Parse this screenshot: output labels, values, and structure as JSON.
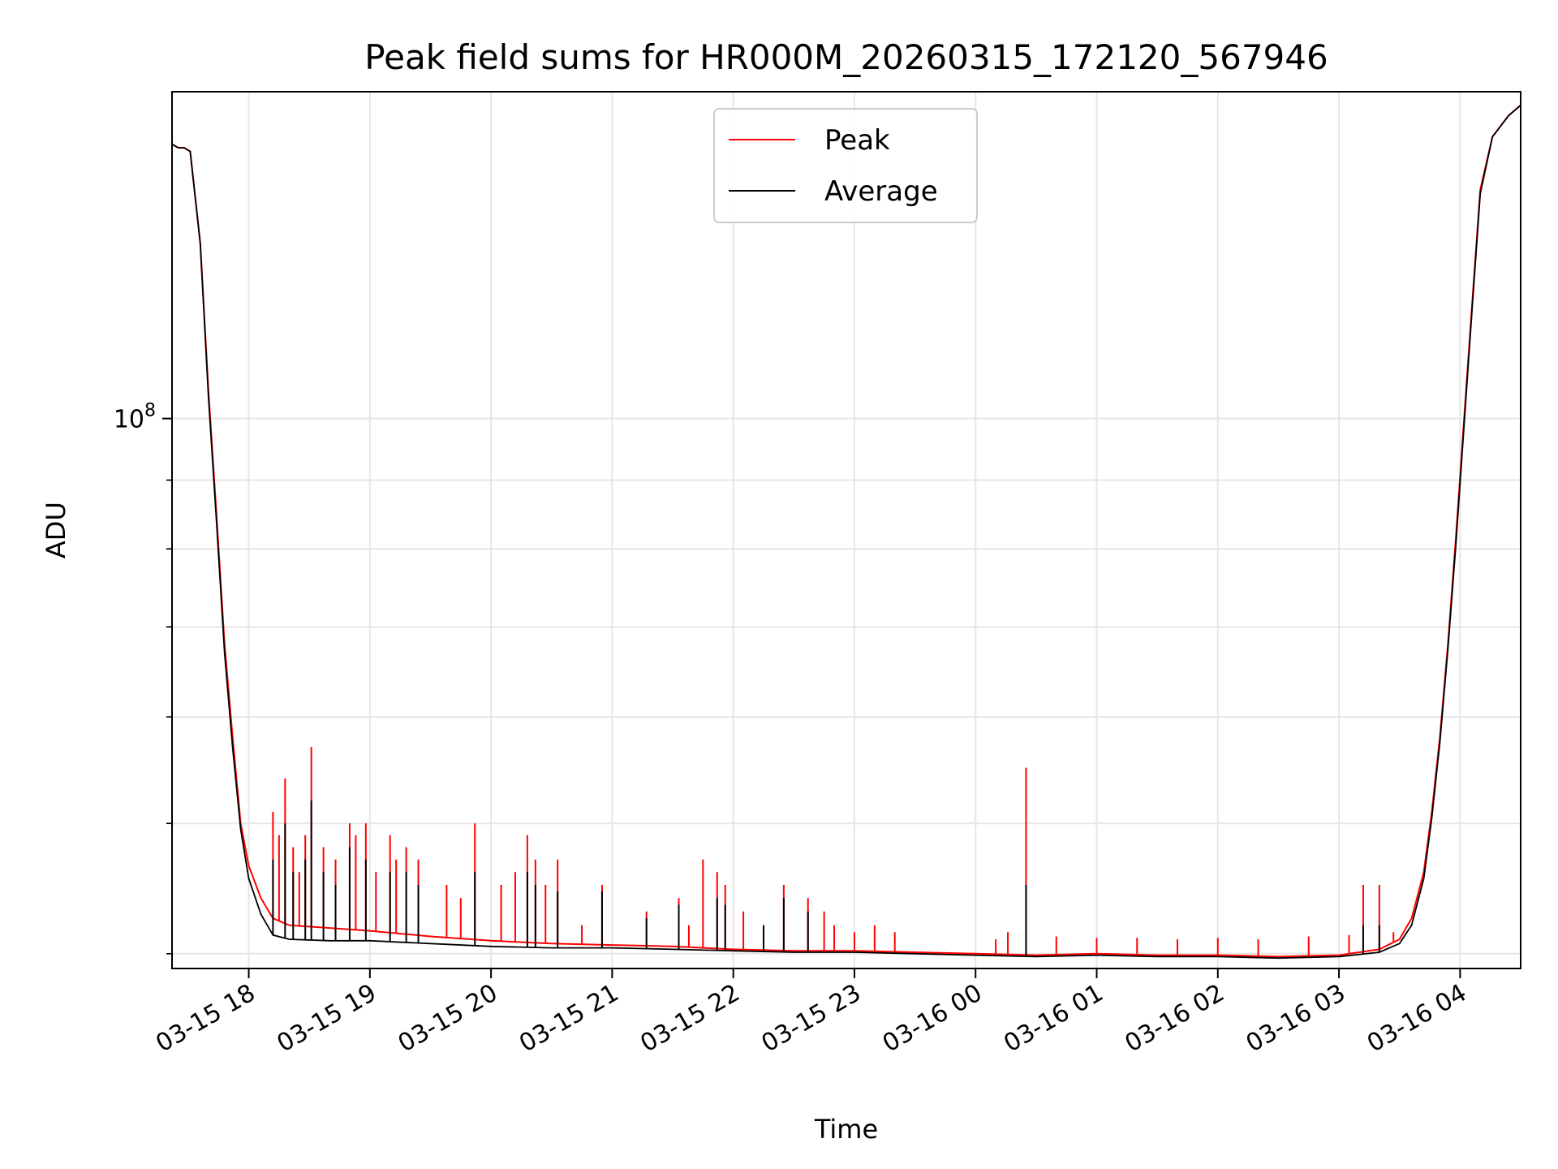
{
  "chart_data": {
    "type": "line",
    "title": "Peak field sums for HR000M_20260315_172120_567946",
    "xlabel": "Time",
    "ylabel": "ADU",
    "yscale": "log",
    "ylim": [
      39000000,
      175000000
    ],
    "xlim": [
      "2026-03-15 17:22",
      "2026-03-16 04:30"
    ],
    "grid": true,
    "legend_position": "top-center",
    "x_ticks": [
      "2026-03-15 18:00",
      "2026-03-15 19:00",
      "2026-03-15 20:00",
      "2026-03-15 21:00",
      "2026-03-15 22:00",
      "2026-03-15 23:00",
      "2026-03-16 00:00",
      "2026-03-16 01:00",
      "2026-03-16 02:00",
      "2026-03-16 03:00",
      "2026-03-16 04:00"
    ],
    "x_tick_labels": [
      "03-15 18",
      "03-15 19",
      "03-15 20",
      "03-15 21",
      "03-15 22",
      "03-15 23",
      "03-16 00",
      "03-16 01",
      "03-16 02",
      "03-16 03",
      "03-16 04"
    ],
    "y_major_ticks": [
      100000000
    ],
    "y_major_tick_labels": [
      {
        "base": "10",
        "exp": "8"
      }
    ],
    "y_minor_ticks": [
      40000000,
      50000000,
      60000000,
      70000000,
      80000000,
      90000000
    ],
    "series": [
      {
        "name": "Peak",
        "color": "#ff0000",
        "baseline": [
          [
            "2026-03-15 17:22",
            160000000
          ],
          [
            "2026-03-15 17:25",
            159000000
          ],
          [
            "2026-03-15 17:28",
            159000000
          ],
          [
            "2026-03-15 17:31",
            158000000
          ],
          [
            "2026-03-15 17:36",
            135000000
          ],
          [
            "2026-03-15 17:40",
            105000000
          ],
          [
            "2026-03-15 17:44",
            85000000
          ],
          [
            "2026-03-15 17:48",
            68000000
          ],
          [
            "2026-03-15 17:52",
            58000000
          ],
          [
            "2026-03-15 17:56",
            50000000
          ],
          [
            "2026-03-15 18:00",
            46500000
          ],
          [
            "2026-03-15 18:06",
            44000000
          ],
          [
            "2026-03-15 18:12",
            42500000
          ],
          [
            "2026-03-15 18:20",
            42000000
          ],
          [
            "2026-03-15 18:40",
            41800000
          ],
          [
            "2026-03-15 19:00",
            41600000
          ],
          [
            "2026-03-15 19:30",
            41200000
          ],
          [
            "2026-03-15 20:00",
            40900000
          ],
          [
            "2026-03-15 20:30",
            40700000
          ],
          [
            "2026-03-15 21:00",
            40600000
          ],
          [
            "2026-03-15 21:30",
            40500000
          ],
          [
            "2026-03-15 22:00",
            40300000
          ],
          [
            "2026-03-15 22:30",
            40200000
          ],
          [
            "2026-03-15 23:00",
            40200000
          ],
          [
            "2026-03-15 23:30",
            40100000
          ],
          [
            "2026-03-16 00:00",
            40000000
          ],
          [
            "2026-03-16 00:30",
            39900000
          ],
          [
            "2026-03-16 01:00",
            40000000
          ],
          [
            "2026-03-16 01:30",
            39900000
          ],
          [
            "2026-03-16 02:00",
            39900000
          ],
          [
            "2026-03-16 02:30",
            39800000
          ],
          [
            "2026-03-16 03:00",
            39900000
          ],
          [
            "2026-03-16 03:20",
            40300000
          ],
          [
            "2026-03-16 03:30",
            41000000
          ],
          [
            "2026-03-16 03:36",
            42500000
          ],
          [
            "2026-03-16 03:42",
            46000000
          ],
          [
            "2026-03-16 03:46",
            51000000
          ],
          [
            "2026-03-16 03:50",
            58000000
          ],
          [
            "2026-03-16 03:54",
            68000000
          ],
          [
            "2026-03-16 03:58",
            82000000
          ],
          [
            "2026-03-16 04:02",
            100000000
          ],
          [
            "2026-03-16 04:06",
            122000000
          ],
          [
            "2026-03-16 04:10",
            148000000
          ],
          [
            "2026-03-16 04:16",
            162000000
          ],
          [
            "2026-03-16 04:24",
            168000000
          ],
          [
            "2026-03-16 04:30",
            171000000
          ]
        ],
        "spikes": [
          [
            "2026-03-15 18:12",
            51000000
          ],
          [
            "2026-03-15 18:15",
            49000000
          ],
          [
            "2026-03-15 18:18",
            54000000
          ],
          [
            "2026-03-15 18:22",
            48000000
          ],
          [
            "2026-03-15 18:25",
            46000000
          ],
          [
            "2026-03-15 18:28",
            49000000
          ],
          [
            "2026-03-15 18:31",
            57000000
          ],
          [
            "2026-03-15 18:37",
            48000000
          ],
          [
            "2026-03-15 18:43",
            47000000
          ],
          [
            "2026-03-15 18:50",
            50000000
          ],
          [
            "2026-03-15 18:53",
            49000000
          ],
          [
            "2026-03-15 18:58",
            50000000
          ],
          [
            "2026-03-15 19:03",
            46000000
          ],
          [
            "2026-03-15 19:10",
            49000000
          ],
          [
            "2026-03-15 19:13",
            47000000
          ],
          [
            "2026-03-15 19:18",
            48000000
          ],
          [
            "2026-03-15 19:24",
            47000000
          ],
          [
            "2026-03-15 19:38",
            45000000
          ],
          [
            "2026-03-15 19:45",
            44000000
          ],
          [
            "2026-03-15 19:52",
            50000000
          ],
          [
            "2026-03-15 20:05",
            45000000
          ],
          [
            "2026-03-15 20:12",
            46000000
          ],
          [
            "2026-03-15 20:18",
            49000000
          ],
          [
            "2026-03-15 20:22",
            47000000
          ],
          [
            "2026-03-15 20:27",
            45000000
          ],
          [
            "2026-03-15 20:33",
            47000000
          ],
          [
            "2026-03-15 20:45",
            42000000
          ],
          [
            "2026-03-15 20:55",
            45000000
          ],
          [
            "2026-03-15 21:17",
            43000000
          ],
          [
            "2026-03-15 21:33",
            44000000
          ],
          [
            "2026-03-15 21:38",
            42000000
          ],
          [
            "2026-03-15 21:45",
            47000000
          ],
          [
            "2026-03-15 21:52",
            46000000
          ],
          [
            "2026-03-15 21:56",
            45000000
          ],
          [
            "2026-03-15 22:05",
            43000000
          ],
          [
            "2026-03-15 22:15",
            42000000
          ],
          [
            "2026-03-15 22:25",
            45000000
          ],
          [
            "2026-03-15 22:37",
            44000000
          ],
          [
            "2026-03-15 22:45",
            43000000
          ],
          [
            "2026-03-15 22:50",
            42000000
          ],
          [
            "2026-03-15 23:00",
            41500000
          ],
          [
            "2026-03-15 23:10",
            42000000
          ],
          [
            "2026-03-15 23:20",
            41500000
          ],
          [
            "2026-03-16 00:10",
            41000000
          ],
          [
            "2026-03-16 00:16",
            41500000
          ],
          [
            "2026-03-16 00:25",
            55000000
          ],
          [
            "2026-03-16 00:40",
            41200000
          ],
          [
            "2026-03-16 01:00",
            41100000
          ],
          [
            "2026-03-16 01:20",
            41100000
          ],
          [
            "2026-03-16 01:40",
            41000000
          ],
          [
            "2026-03-16 02:00",
            41100000
          ],
          [
            "2026-03-16 02:20",
            41000000
          ],
          [
            "2026-03-16 02:45",
            41200000
          ],
          [
            "2026-03-16 03:05",
            41300000
          ],
          [
            "2026-03-16 03:12",
            45000000
          ],
          [
            "2026-03-16 03:20",
            45000000
          ],
          [
            "2026-03-16 03:27",
            41500000
          ]
        ]
      },
      {
        "name": "Average",
        "color": "#000000",
        "baseline": [
          [
            "2026-03-15 17:22",
            160000000
          ],
          [
            "2026-03-15 17:25",
            159000000
          ],
          [
            "2026-03-15 17:28",
            159000000
          ],
          [
            "2026-03-15 17:31",
            158000000
          ],
          [
            "2026-03-15 17:36",
            135000000
          ],
          [
            "2026-03-15 17:40",
            104000000
          ],
          [
            "2026-03-15 17:44",
            84000000
          ],
          [
            "2026-03-15 17:48",
            67000000
          ],
          [
            "2026-03-15 17:52",
            57000000
          ],
          [
            "2026-03-15 17:56",
            49500000
          ],
          [
            "2026-03-15 18:00",
            45500000
          ],
          [
            "2026-03-15 18:06",
            42800000
          ],
          [
            "2026-03-15 18:12",
            41300000
          ],
          [
            "2026-03-15 18:20",
            41000000
          ],
          [
            "2026-03-15 18:40",
            40900000
          ],
          [
            "2026-03-15 19:00",
            40900000
          ],
          [
            "2026-03-15 19:30",
            40700000
          ],
          [
            "2026-03-15 20:00",
            40500000
          ],
          [
            "2026-03-15 20:30",
            40400000
          ],
          [
            "2026-03-15 21:00",
            40400000
          ],
          [
            "2026-03-15 21:30",
            40300000
          ],
          [
            "2026-03-15 22:00",
            40200000
          ],
          [
            "2026-03-15 22:30",
            40100000
          ],
          [
            "2026-03-15 23:00",
            40100000
          ],
          [
            "2026-03-15 23:30",
            40000000
          ],
          [
            "2026-03-16 00:00",
            39900000
          ],
          [
            "2026-03-16 00:30",
            39800000
          ],
          [
            "2026-03-16 01:00",
            39900000
          ],
          [
            "2026-03-16 01:30",
            39800000
          ],
          [
            "2026-03-16 02:00",
            39800000
          ],
          [
            "2026-03-16 02:30",
            39700000
          ],
          [
            "2026-03-16 03:00",
            39800000
          ],
          [
            "2026-03-16 03:20",
            40100000
          ],
          [
            "2026-03-16 03:30",
            40700000
          ],
          [
            "2026-03-16 03:36",
            42000000
          ],
          [
            "2026-03-16 03:42",
            45500000
          ],
          [
            "2026-03-16 03:46",
            50500000
          ],
          [
            "2026-03-16 03:50",
            57500000
          ],
          [
            "2026-03-16 03:54",
            67500000
          ],
          [
            "2026-03-16 03:58",
            81000000
          ],
          [
            "2026-03-16 04:02",
            99000000
          ],
          [
            "2026-03-16 04:06",
            121000000
          ],
          [
            "2026-03-16 04:10",
            147000000
          ],
          [
            "2026-03-16 04:16",
            162000000
          ],
          [
            "2026-03-16 04:24",
            168000000
          ],
          [
            "2026-03-16 04:30",
            171000000
          ]
        ],
        "spikes": [
          [
            "2026-03-15 18:12",
            47000000
          ],
          [
            "2026-03-15 18:18",
            50000000
          ],
          [
            "2026-03-15 18:22",
            46000000
          ],
          [
            "2026-03-15 18:28",
            47000000
          ],
          [
            "2026-03-15 18:31",
            52000000
          ],
          [
            "2026-03-15 18:37",
            46000000
          ],
          [
            "2026-03-15 18:43",
            45000000
          ],
          [
            "2026-03-15 18:50",
            48000000
          ],
          [
            "2026-03-15 18:58",
            47000000
          ],
          [
            "2026-03-15 19:10",
            46000000
          ],
          [
            "2026-03-15 19:18",
            46000000
          ],
          [
            "2026-03-15 19:24",
            45000000
          ],
          [
            "2026-03-15 19:52",
            46000000
          ],
          [
            "2026-03-15 20:18",
            46000000
          ],
          [
            "2026-03-15 20:22",
            45000000
          ],
          [
            "2026-03-15 20:33",
            44500000
          ],
          [
            "2026-03-15 20:55",
            44500000
          ],
          [
            "2026-03-15 21:17",
            42500000
          ],
          [
            "2026-03-15 21:33",
            43500000
          ],
          [
            "2026-03-15 21:52",
            44000000
          ],
          [
            "2026-03-15 21:56",
            43500000
          ],
          [
            "2026-03-15 22:15",
            42000000
          ],
          [
            "2026-03-15 22:25",
            44000000
          ],
          [
            "2026-03-15 22:37",
            43000000
          ],
          [
            "2026-03-16 00:25",
            45000000
          ],
          [
            "2026-03-16 03:12",
            42000000
          ],
          [
            "2026-03-16 03:20",
            42000000
          ]
        ]
      }
    ]
  }
}
